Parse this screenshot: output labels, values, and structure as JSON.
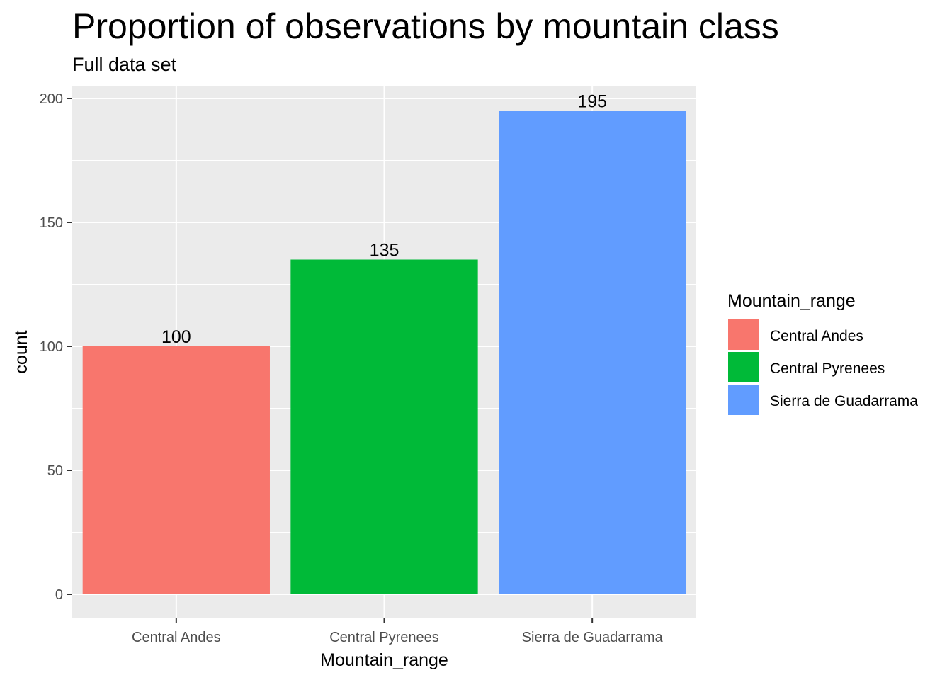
{
  "chart_data": {
    "type": "bar",
    "title": "Proportion of observations by mountain class",
    "subtitle": "Full data set",
    "xlabel": "Mountain_range",
    "ylabel": "count",
    "categories": [
      "Central Andes",
      "Central Pyrenees",
      "Sierra de Guadarrama"
    ],
    "values": [
      100,
      135,
      195
    ],
    "data_labels": [
      "100",
      "135",
      "195"
    ],
    "colors": [
      "#F8766D",
      "#00BA38",
      "#619CFF"
    ],
    "ylim": [
      0,
      209
    ],
    "yticks": [
      0,
      50,
      100,
      150,
      200
    ],
    "grid": true,
    "legend": {
      "title": "Mountain_range",
      "placement": "right",
      "entries": [
        "Central Andes",
        "Central Pyrenees",
        "Sierra de Guadarrama"
      ]
    }
  }
}
